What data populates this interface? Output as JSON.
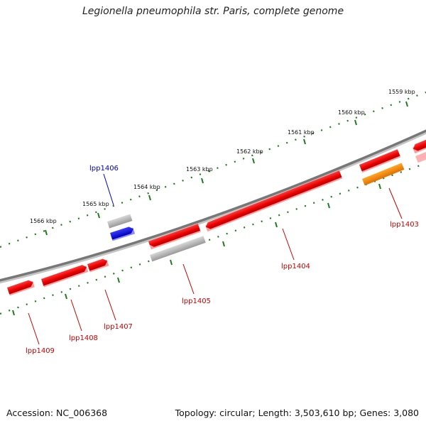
{
  "title": "Legionella pneumophila str. Paris, complete genome",
  "footer": {
    "accession": "Accession: NC_006368",
    "summary": "Topology: circular; Length: 3,503,610 bp; Genes: 3,080"
  },
  "scale": {
    "unit": "kbp",
    "labels": [
      "1559 kbp",
      "1560 kbp",
      "1561 kbp",
      "1562 kbp",
      "1563 kbp",
      "1564 kbp",
      "1565 kbp",
      "1566 kbp"
    ]
  },
  "colors": {
    "backbone": "#7a7a7a",
    "tick_major": "#1e7a1e",
    "tick_minor": "#1e7a1e",
    "gene_red": "#ee1111",
    "gene_grey": "#aaaaaa",
    "gene_blue": "#1111dd",
    "gene_orange": "#ff8c00",
    "label_red": "#cc0000",
    "label_blue": "#0000cc"
  },
  "genes": {
    "lpp1403": "lpp1403",
    "lpp1404": "lpp1404",
    "lpp1405": "lpp1405",
    "lpp1406": "lpp1406",
    "lpp1407": "lpp1407",
    "lpp1408": "lpp1408",
    "lpp1409": "lpp1409"
  }
}
